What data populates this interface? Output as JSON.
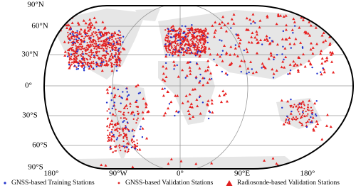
{
  "map": {
    "lat_labels": [
      "90°N",
      "60°N",
      "30°N",
      "0°",
      "30°S",
      "60°S",
      "90°S"
    ],
    "lon_labels": [
      "180°",
      "90°W",
      "0°",
      "90°E",
      "180°"
    ],
    "legend": [
      "GNSS-based Training Stations",
      "GNSS-based Validation Stations",
      "Radiosonde-based Validation Stations"
    ]
  }
}
